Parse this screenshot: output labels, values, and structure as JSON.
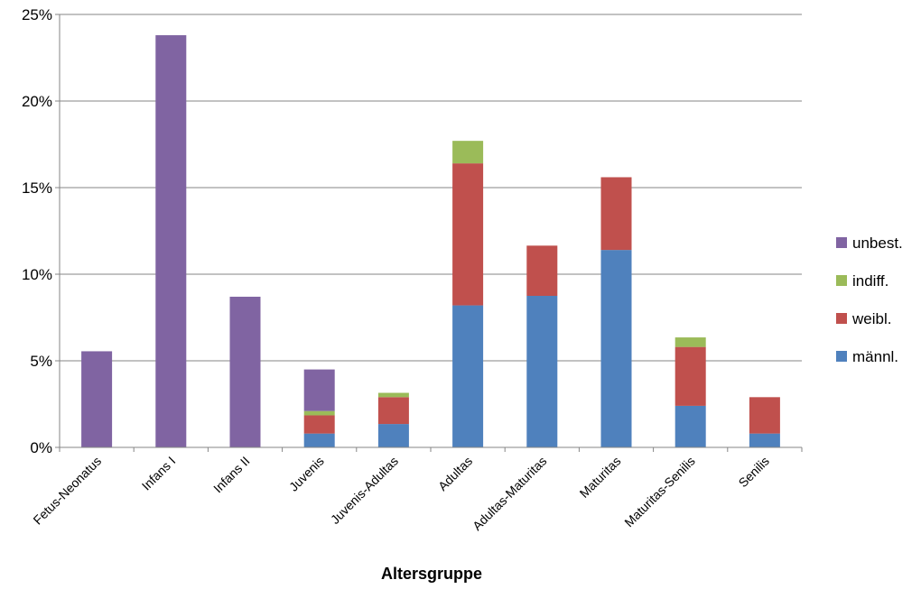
{
  "chart_data": {
    "type": "bar",
    "stacked": true,
    "title": "",
    "xlabel": "Altersgruppe",
    "ylabel": "",
    "ylim": [
      0,
      25
    ],
    "y_ticks": [
      "0%",
      "5%",
      "10%",
      "15%",
      "20%",
      "25%"
    ],
    "y_tick_values": [
      0,
      5,
      10,
      15,
      20,
      25
    ],
    "grid": true,
    "legend_position": "right",
    "categories": [
      "Fetus-Neonatus",
      "Infans I",
      "Infans II",
      "Juvenis",
      "Juvenis-Adultas",
      "Adultas",
      "Adultas-Maturitas",
      "Maturitas",
      "Maturitas-Senilis",
      "Senilis"
    ],
    "series": [
      {
        "name": "männl.",
        "color": "#4F81BD",
        "values": [
          0,
          0,
          0,
          0.8,
          1.35,
          8.2,
          8.75,
          11.4,
          2.4,
          0.8
        ]
      },
      {
        "name": "weibl.",
        "color": "#C0504D",
        "values": [
          0,
          0,
          0,
          1.05,
          1.55,
          8.2,
          2.9,
          4.2,
          3.4,
          2.1
        ]
      },
      {
        "name": "indiff.",
        "color": "#9BBB59",
        "values": [
          0,
          0,
          0,
          0.25,
          0.25,
          1.3,
          0,
          0,
          0.55,
          0
        ]
      },
      {
        "name": "unbest.",
        "color": "#8064A2",
        "values": [
          5.55,
          23.8,
          8.7,
          2.4,
          0,
          0,
          0,
          0,
          0,
          0
        ]
      }
    ],
    "legend_order": [
      "unbest.",
      "indiff.",
      "weibl.",
      "männl."
    ]
  }
}
